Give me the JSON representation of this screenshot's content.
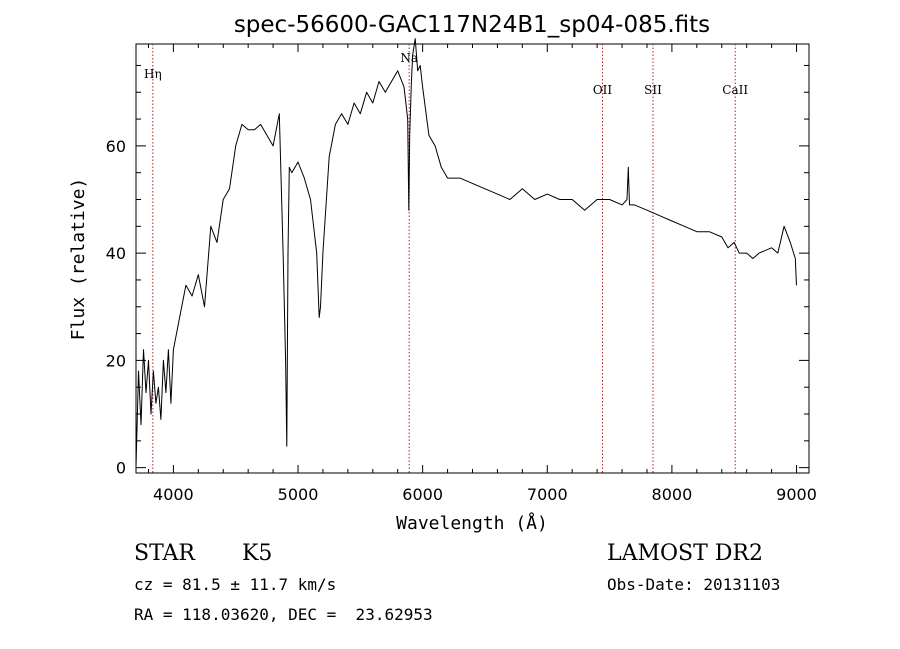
{
  "chart_data": {
    "type": "line",
    "title": "spec-56600-GAC117N24B1_sp04-085.fits",
    "xlabel": "Wavelength (Å)",
    "ylabel": "Flux (relative)",
    "xlim": [
      3700,
      9100
    ],
    "ylim": [
      -1,
      79
    ],
    "xticks": [
      4000,
      5000,
      6000,
      7000,
      8000,
      9000
    ],
    "yticks": [
      0,
      20,
      40,
      60
    ],
    "grid": false,
    "line_color": "#000000",
    "marker_color": "#b22222",
    "lines": [
      {
        "label": "Hη",
        "x": 3835
      },
      {
        "label": "Na",
        "x": 5892
      },
      {
        "label": "OII",
        "x": 7443
      },
      {
        "label": "SII",
        "x": 7848
      },
      {
        "label": "CaII",
        "x": 8508
      }
    ],
    "series": [
      {
        "x": [
          3700,
          3720,
          3740,
          3760,
          3780,
          3800,
          3820,
          3840,
          3860,
          3880,
          3900,
          3920,
          3940,
          3960,
          3980,
          4000,
          4050,
          4100,
          4150,
          4200,
          4250,
          4300,
          4350,
          4400,
          4450,
          4500,
          4550,
          4600,
          4650,
          4700,
          4750,
          4800,
          4850,
          4880,
          4900,
          4910,
          4920,
          4930,
          4950,
          5000,
          5050,
          5100,
          5150,
          5170,
          5180,
          5200,
          5250,
          5300,
          5350,
          5400,
          5450,
          5500,
          5550,
          5600,
          5650,
          5700,
          5750,
          5800,
          5850,
          5880,
          5889,
          5896,
          5910,
          5920,
          5940,
          5960,
          5980,
          6000,
          6050,
          6100,
          6150,
          6200,
          6300,
          6400,
          6500,
          6600,
          6700,
          6800,
          6900,
          7000,
          7100,
          7200,
          7300,
          7400,
          7500,
          7600,
          7640,
          7650,
          7660,
          7700,
          7800,
          7900,
          8000,
          8100,
          8200,
          8300,
          8400,
          8450,
          8500,
          8540,
          8600,
          8650,
          8700,
          8800,
          8850,
          8900,
          8950,
          8990,
          9000
        ],
        "y": [
          0,
          18,
          8,
          22,
          14,
          20,
          10,
          18,
          12,
          15,
          9,
          20,
          14,
          22,
          12,
          22,
          28,
          34,
          32,
          36,
          30,
          45,
          42,
          50,
          52,
          60,
          64,
          63,
          63,
          64,
          62,
          60,
          66,
          40,
          20,
          4,
          40,
          56,
          55,
          57,
          54,
          50,
          40,
          28,
          30,
          40,
          58,
          64,
          66,
          64,
          68,
          66,
          70,
          68,
          72,
          70,
          72,
          74,
          71,
          65,
          48,
          62,
          72,
          77,
          80,
          74,
          75,
          71,
          62,
          60,
          56,
          54,
          54,
          53,
          52,
          51,
          50,
          52,
          50,
          51,
          50,
          50,
          48,
          50,
          50,
          49,
          50,
          56,
          49,
          49,
          48,
          47,
          46,
          45,
          44,
          44,
          43,
          41,
          42,
          40,
          40,
          39,
          40,
          41,
          40,
          45,
          42,
          39,
          34
        ]
      }
    ],
    "info": {
      "class_label": "STAR",
      "subclass_label": "K5",
      "cz": "cz = 81.5 ± 11.7 km/s",
      "radec": "RA = 118.03620, DEC =  23.62953",
      "survey": "LAMOST DR2",
      "obs_date": "Obs-Date: 20131103"
    }
  }
}
